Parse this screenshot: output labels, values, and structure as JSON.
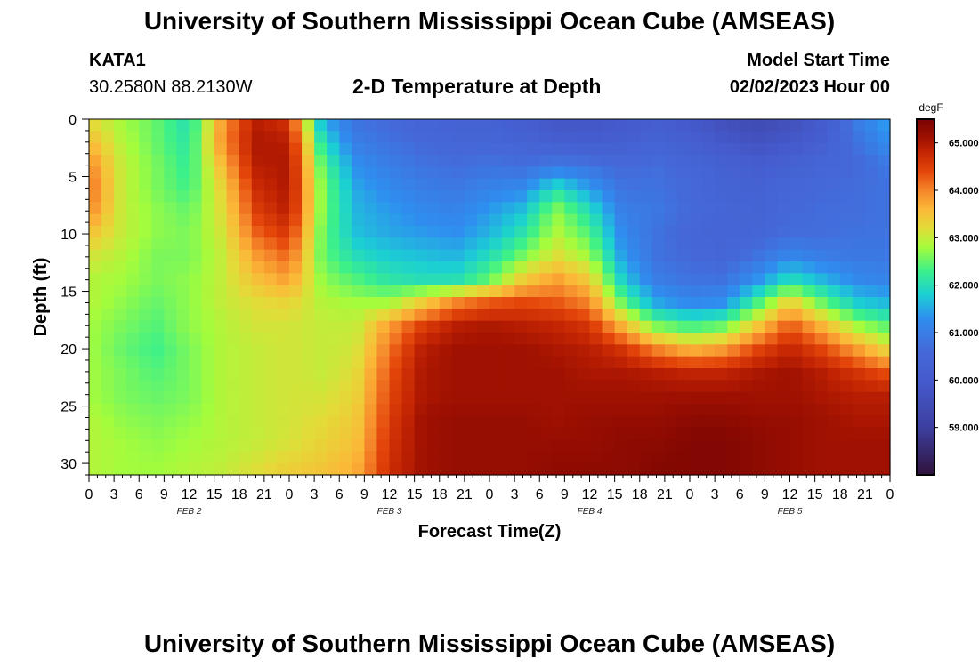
{
  "header": {
    "title": "University of Southern Mississippi Ocean Cube (AMSEAS)",
    "station": "KATA1",
    "coords": "30.2580N  88.2130W",
    "plot_title": "2-D Temperature at Depth",
    "start_label": "Model Start Time",
    "start_value": "02/02/2023 Hour 00"
  },
  "footer": {
    "title": "University of Southern Mississippi Ocean Cube (AMSEAS)"
  },
  "chart_data": {
    "type": "heatmap",
    "title": "2-D Temperature at Depth",
    "xlabel": "Forecast Time(Z)",
    "ylabel": "Depth (ft)",
    "x_tick_labels": [
      "0",
      "3",
      "6",
      "9",
      "12",
      "15",
      "18",
      "21",
      "0",
      "3",
      "6",
      "9",
      "12",
      "15",
      "18",
      "21",
      "0",
      "3",
      "6",
      "9",
      "12",
      "15",
      "18",
      "21",
      "0",
      "3",
      "6",
      "9",
      "12",
      "15",
      "18",
      "21",
      "0"
    ],
    "day_labels": [
      "FEB 2",
      "FEB 3",
      "FEB 4",
      "FEB 5"
    ],
    "xlim_hours": [
      0,
      96
    ],
    "y_ticks": [
      0,
      5,
      10,
      15,
      20,
      25,
      30
    ],
    "ylim": [
      0,
      31
    ],
    "colorbar": {
      "unit": "degF",
      "range": [
        58.0,
        65.5
      ],
      "ticks": [
        "65.000",
        "64.000",
        "63.000",
        "62.000",
        "61.000",
        "60.000",
        "59.000"
      ],
      "tick_values": [
        65,
        64,
        63,
        62,
        61,
        60,
        59
      ]
    },
    "color_stops": [
      {
        "v": 58.0,
        "c": "#30123b"
      },
      {
        "v": 59.0,
        "c": "#3d3f9f"
      },
      {
        "v": 60.0,
        "c": "#455bcd"
      },
      {
        "v": 60.6,
        "c": "#4568d8"
      },
      {
        "v": 61.3,
        "c": "#2f8ef0"
      },
      {
        "v": 61.8,
        "c": "#1bcfd4"
      },
      {
        "v": 62.3,
        "c": "#3cf08a"
      },
      {
        "v": 62.8,
        "c": "#a4fc3c"
      },
      {
        "v": 63.2,
        "c": "#e2dc38"
      },
      {
        "v": 63.6,
        "c": "#fbb938"
      },
      {
        "v": 64.0,
        "c": "#f5852a"
      },
      {
        "v": 64.4,
        "c": "#e4460a"
      },
      {
        "v": 64.8,
        "c": "#c42503"
      },
      {
        "v": 65.1,
        "c": "#a01101"
      },
      {
        "v": 65.5,
        "c": "#7a0403"
      }
    ],
    "time_columns_hours": [
      0,
      4,
      8,
      12,
      16,
      20,
      24,
      28,
      32,
      36,
      40,
      44,
      48,
      52,
      56,
      60,
      64,
      68,
      72,
      76,
      80,
      84,
      88,
      92,
      96
    ],
    "depth_rows_ft": [
      0,
      2,
      4,
      6,
      8,
      10,
      12,
      14,
      16,
      18,
      20,
      22,
      24,
      26,
      28,
      31
    ],
    "values_degF": [
      [
        63.2,
        62.8,
        62.5,
        62.0,
        63.8,
        64.9,
        64.6,
        61.5,
        60.8,
        60.6,
        60.4,
        60.3,
        60.3,
        60.1,
        59.8,
        59.8,
        59.9,
        60.1,
        59.9,
        59.6,
        59.4,
        59.6,
        60.0,
        61.0,
        61.5
      ],
      [
        63.6,
        62.9,
        62.5,
        62.1,
        63.9,
        65.0,
        64.9,
        62.0,
        61.0,
        60.8,
        60.6,
        60.5,
        60.5,
        60.4,
        60.2,
        60.1,
        60.2,
        60.4,
        60.2,
        59.9,
        59.7,
        59.9,
        60.2,
        60.8,
        61.3
      ],
      [
        64.0,
        63.0,
        62.6,
        62.2,
        63.6,
        64.9,
        65.0,
        62.4,
        61.3,
        61.0,
        60.8,
        60.7,
        60.8,
        60.7,
        60.9,
        60.8,
        60.6,
        60.7,
        60.5,
        60.3,
        60.1,
        60.3,
        60.5,
        60.6,
        60.9
      ],
      [
        64.2,
        63.0,
        62.6,
        62.3,
        63.3,
        64.7,
        65.0,
        62.6,
        61.5,
        61.2,
        61.0,
        60.9,
        61.1,
        61.2,
        62.0,
        61.4,
        60.8,
        60.8,
        60.6,
        60.4,
        60.3,
        60.5,
        60.6,
        60.7,
        60.8
      ],
      [
        64.0,
        63.0,
        62.7,
        62.5,
        63.2,
        64.5,
        64.9,
        62.6,
        61.6,
        61.4,
        61.2,
        61.1,
        61.4,
        61.7,
        62.7,
        62.0,
        61.0,
        60.9,
        60.6,
        60.5,
        60.4,
        60.6,
        60.7,
        60.7,
        60.8
      ],
      [
        63.5,
        63.0,
        62.7,
        62.6,
        63.1,
        64.2,
        64.6,
        62.5,
        61.7,
        61.5,
        61.4,
        61.3,
        61.6,
        62.1,
        62.9,
        62.4,
        61.2,
        60.8,
        60.5,
        60.4,
        60.5,
        60.7,
        60.7,
        60.8,
        60.8
      ],
      [
        63.1,
        62.9,
        62.6,
        62.6,
        63.0,
        63.8,
        64.2,
        62.5,
        62.0,
        61.8,
        61.7,
        61.6,
        62.0,
        62.6,
        63.2,
        62.8,
        61.4,
        60.8,
        60.6,
        60.5,
        60.8,
        61.2,
        61.0,
        60.9,
        60.9
      ],
      [
        62.9,
        62.8,
        62.6,
        62.7,
        63.0,
        63.5,
        63.8,
        62.7,
        62.4,
        62.1,
        62.0,
        62.0,
        62.5,
        63.4,
        63.8,
        63.4,
        61.8,
        61.0,
        60.8,
        60.8,
        61.3,
        62.0,
        61.6,
        61.2,
        61.1
      ],
      [
        62.9,
        62.7,
        62.5,
        62.7,
        63.0,
        63.2,
        63.3,
        62.9,
        62.8,
        62.8,
        63.4,
        64.0,
        64.3,
        64.4,
        64.3,
        64.0,
        62.5,
        61.5,
        61.2,
        61.3,
        62.3,
        63.4,
        62.5,
        61.8,
        61.6
      ],
      [
        62.8,
        62.6,
        62.4,
        62.7,
        62.9,
        63.1,
        63.1,
        63.0,
        63.0,
        63.8,
        64.5,
        64.9,
        65.0,
        64.9,
        64.8,
        64.6,
        63.6,
        62.6,
        62.3,
        62.5,
        63.4,
        64.3,
        63.6,
        62.8,
        62.4
      ],
      [
        62.8,
        62.5,
        62.3,
        62.6,
        62.9,
        63.0,
        63.1,
        63.0,
        63.1,
        64.1,
        64.9,
        65.1,
        65.1,
        65.1,
        65.0,
        64.9,
        64.6,
        64.0,
        63.6,
        63.8,
        64.4,
        64.8,
        64.4,
        63.8,
        63.2
      ],
      [
        62.8,
        62.6,
        62.4,
        62.6,
        62.9,
        63.0,
        63.1,
        63.0,
        63.2,
        64.3,
        65.0,
        65.1,
        65.1,
        65.1,
        65.1,
        65.0,
        65.0,
        64.9,
        64.8,
        64.8,
        65.0,
        65.1,
        64.9,
        64.6,
        64.3
      ],
      [
        62.8,
        62.6,
        62.5,
        62.6,
        62.9,
        63.0,
        63.1,
        63.1,
        63.3,
        64.4,
        65.0,
        65.1,
        65.1,
        65.1,
        65.1,
        65.1,
        65.1,
        65.1,
        65.1,
        65.1,
        65.1,
        65.1,
        65.0,
        64.9,
        64.9
      ],
      [
        62.9,
        62.7,
        62.6,
        62.7,
        62.9,
        63.0,
        63.1,
        63.2,
        63.4,
        64.5,
        65.1,
        65.2,
        65.2,
        65.2,
        65.1,
        65.2,
        65.2,
        65.2,
        65.3,
        65.3,
        65.2,
        65.2,
        65.1,
        65.0,
        65.0
      ],
      [
        62.9,
        62.8,
        62.7,
        62.8,
        62.9,
        63.0,
        63.1,
        63.3,
        63.5,
        64.6,
        65.1,
        65.2,
        65.2,
        65.2,
        65.2,
        65.2,
        65.3,
        65.3,
        65.4,
        65.4,
        65.3,
        65.2,
        65.1,
        65.1,
        65.1
      ],
      [
        62.9,
        62.8,
        62.8,
        62.9,
        63.0,
        63.2,
        63.4,
        63.5,
        63.7,
        64.7,
        65.1,
        65.2,
        65.2,
        65.2,
        65.3,
        65.3,
        65.3,
        65.4,
        65.4,
        65.4,
        65.3,
        65.2,
        65.1,
        65.1,
        65.1
      ]
    ]
  }
}
